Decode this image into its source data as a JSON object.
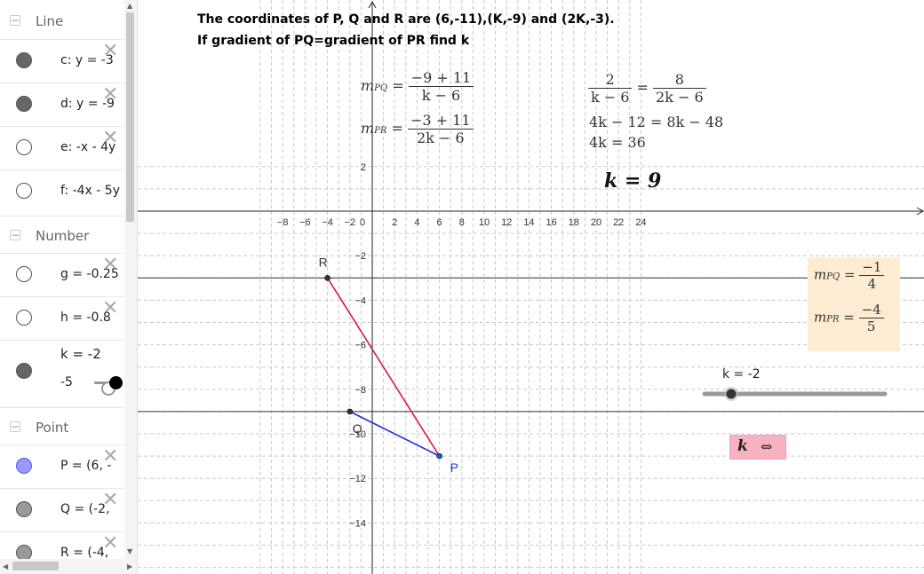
{
  "algebra_view": {
    "groups": [
      {
        "label": "Line",
        "items": [
          {
            "expr": "c: y = -3",
            "marble": "#666666",
            "filled": true
          },
          {
            "expr": "d: y = -9",
            "marble": "#666666",
            "filled": true
          },
          {
            "expr": "e: -x - 4y",
            "marble": "#ffffff",
            "filled": false
          },
          {
            "expr": "f: -4x - 5y",
            "marble": "#ffffff",
            "filled": false
          }
        ]
      },
      {
        "label": "Number",
        "items": [
          {
            "expr": "g = -0.25",
            "marble": "#ffffff",
            "filled": false
          },
          {
            "expr": "h = -0.8",
            "marble": "#ffffff",
            "filled": false
          }
        ]
      },
      {
        "label": "Point",
        "items": [
          {
            "expr": "P = (6, -",
            "marble": "#9999ff",
            "filled": true
          },
          {
            "expr": "Q = (-2,",
            "marble": "#999999",
            "filled": true
          },
          {
            "expr": "R = (-4,",
            "marble": "#999999",
            "filled": true
          }
        ]
      }
    ],
    "k_row": {
      "expr": "k = -2",
      "slider_min": "-5",
      "marble": "#666666"
    },
    "toggle_symbol": "−",
    "delete_symbol": "✕"
  },
  "problem": {
    "line1": "The coordinates of P, Q and R are (6,-11),(K,-9) and (2K,-3).",
    "line2": "If gradient of PQ=gradient of PR find k"
  },
  "working": {
    "mpq_label": "m",
    "mpq_sub": "PQ",
    "mpq_num": "−9 + 11",
    "mpq_den": "k − 6",
    "mpr_label": "m",
    "mpr_sub": "PR",
    "mpr_num": "−3 + 11",
    "mpr_den": "2k − 6",
    "eq_left_num": "2",
    "eq_left_den": "k − 6",
    "eq_right_num": "8",
    "eq_right_den": "2k − 6",
    "eq2": "4k − 12 = 8k − 48",
    "eq3": "4k = 36",
    "answer": "k = 9"
  },
  "info_box": {
    "mpq_num": "−1",
    "mpq_den": "4",
    "mpr_num": "−4",
    "mpr_den": "5",
    "color": "#fdecd2"
  },
  "slider": {
    "label": "k = -2",
    "value": -2,
    "min": -5,
    "max": 5
  },
  "k_button": {
    "label": "k",
    "symbol": "⇔",
    "color": "#f7b2c0"
  },
  "chart_data": {
    "type": "scatter",
    "x_ticks": [
      "−8",
      "−6",
      "−4",
      "−2",
      "0",
      "2",
      "4",
      "6",
      "8",
      "10",
      "12",
      "14",
      "16",
      "18",
      "20",
      "22",
      "24"
    ],
    "y_ticks": [
      "2",
      "−2",
      "−4",
      "−6",
      "−8",
      "−10",
      "−12",
      "−14"
    ],
    "xlim": [
      -10.2,
      24.8
    ],
    "ylim": [
      -16.2,
      2.3
    ],
    "grid": true,
    "points": [
      {
        "name": "R",
        "x": -4,
        "y": -3,
        "color": "#333333"
      },
      {
        "name": "Q",
        "x": -2,
        "y": -9,
        "color": "#333333"
      },
      {
        "name": "P",
        "x": 6,
        "y": -11,
        "color": "#1565c0"
      }
    ],
    "segments": [
      {
        "from": "P",
        "to": "R",
        "color": "#d81b40"
      },
      {
        "from": "P",
        "to": "Q",
        "color": "#1e30e0"
      }
    ],
    "horizontal_lines": [
      {
        "name": "c",
        "y": -3
      },
      {
        "name": "d",
        "y": -9
      }
    ]
  }
}
